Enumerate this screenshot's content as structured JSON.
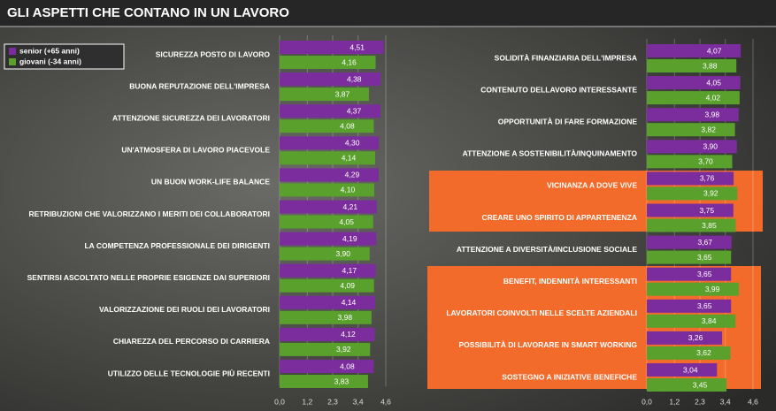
{
  "chart_data": [
    {
      "type": "hbar",
      "title": "GLI ASPETTI CHE CONTANO IN UN LAVORO",
      "legend": "top-left",
      "grid": true,
      "categories": [
        "SICUREZZA POSTO DI LAVORO",
        "BUONA REPUTAZIONE DELL'IMPRESA",
        "ATTENZIONE SICUREZZA DEI LAVORATORI",
        "UN'ATMOSFERA DI LAVORO PIACEVOLE",
        "UN BUON WORK-LIFE BALANCE",
        "RETRIBUZIONI CHE VALORIZZANO I MERITI DEI COLLABORATORI",
        "LA COMPETENZA PROFESSIONALE DEI DIRIGENTI",
        "SENTIRSI ASCOLTATO NELLE PROPRIE ESIGENZE DAI SUPERIORI",
        "VALORIZZAZIONE DEI RUOLI DEI LAVORATORI",
        "CHIAREZZA DEL PERCORSO DI CARRIERA",
        "UTILIZZO DELLE TECNOLOGIE PIÙ RECENTI"
      ],
      "series": [
        {
          "name": "senior (+65 anni)",
          "color": "#7b2d9e",
          "values": [
            4.51,
            4.38,
            4.37,
            4.3,
            4.29,
            4.21,
            4.19,
            4.17,
            4.14,
            4.12,
            4.08
          ],
          "value_labels": [
            "4,51",
            "4,38",
            "4,37",
            "4,30",
            "4,29",
            "4,21",
            "4,19",
            "4,17",
            "4,14",
            "4,12",
            "4,08"
          ]
        },
        {
          "name": "giovani (-34 anni)",
          "color": "#5aa02c",
          "values": [
            4.16,
            3.87,
            4.08,
            4.14,
            4.1,
            4.05,
            3.9,
            4.09,
            3.98,
            3.92,
            3.83
          ],
          "value_labels": [
            "4,16",
            "3,87",
            "4,08",
            "4,14",
            "4,10",
            "4,05",
            "3,90",
            "4,09",
            "3,98",
            "3,92",
            "3,83"
          ]
        }
      ],
      "xlim": [
        0,
        4.6
      ],
      "xticks": [
        {
          "value": 0,
          "label": "0,0"
        },
        {
          "value": 1.2,
          "label": "1,2"
        },
        {
          "value": 2.3,
          "label": "2,3"
        },
        {
          "value": 3.4,
          "label": "3,4"
        },
        {
          "value": 4.6,
          "label": "4,6"
        }
      ]
    },
    {
      "type": "hbar",
      "grid": true,
      "categories": [
        "SOLIDITÀ FINANZIARIA DELL'IMPRESA",
        "CONTENUTO DELLAVORO INTERESSANTE",
        "OPPORTUNITÀ DI FARE FORMAZIONE",
        "ATTENZIONE A SOSTENIBILITÀ/INQUINAMENTO",
        "VICINANZA A DOVE VIVE",
        "CREARE UNO SPIRITO DI APPARTENENZA",
        "ATTENZIONE A DIVERSITÀ/INCLUSIONE SOCIALE",
        "BENEFIT, INDENNITÀ INTERESSANTI",
        "LAVORATORI COINVOLTI NELLE SCELTE AZIENDALI",
        "POSSIBILITÀ DI LAVORARE IN SMART WORKING",
        "SOSTEGNO A INIZIATIVE BENEFICHE"
      ],
      "series": [
        {
          "color": "#7b2d9e",
          "values": [
            4.07,
            4.05,
            3.98,
            3.9,
            3.76,
            3.75,
            3.67,
            3.65,
            3.65,
            3.26,
            3.04
          ],
          "value_labels": [
            "4,07",
            "4,05",
            "3,98",
            "3,90",
            "3,76",
            "3,75",
            "3,67",
            "3,65",
            "3,65",
            "3,26",
            "3,04"
          ]
        },
        {
          "color": "#5aa02c",
          "values": [
            3.88,
            4.02,
            3.82,
            3.7,
            3.92,
            3.85,
            3.65,
            3.99,
            3.84,
            3.62,
            3.45
          ],
          "value_labels": [
            "3,88",
            "4,02",
            "3,82",
            "3,70",
            "3,92",
            "3,85",
            "3,65",
            "3,99",
            "3,84",
            "3,62",
            "3,45"
          ]
        }
      ],
      "xlim": [
        0,
        4.6
      ],
      "xticks": [
        {
          "value": 0,
          "label": "0,0"
        },
        {
          "value": 1.2,
          "label": "1,2"
        },
        {
          "value": 2.3,
          "label": "2,3"
        },
        {
          "value": 3.4,
          "label": "3,4"
        },
        {
          "value": 4.6,
          "label": "4,6"
        }
      ]
    }
  ]
}
